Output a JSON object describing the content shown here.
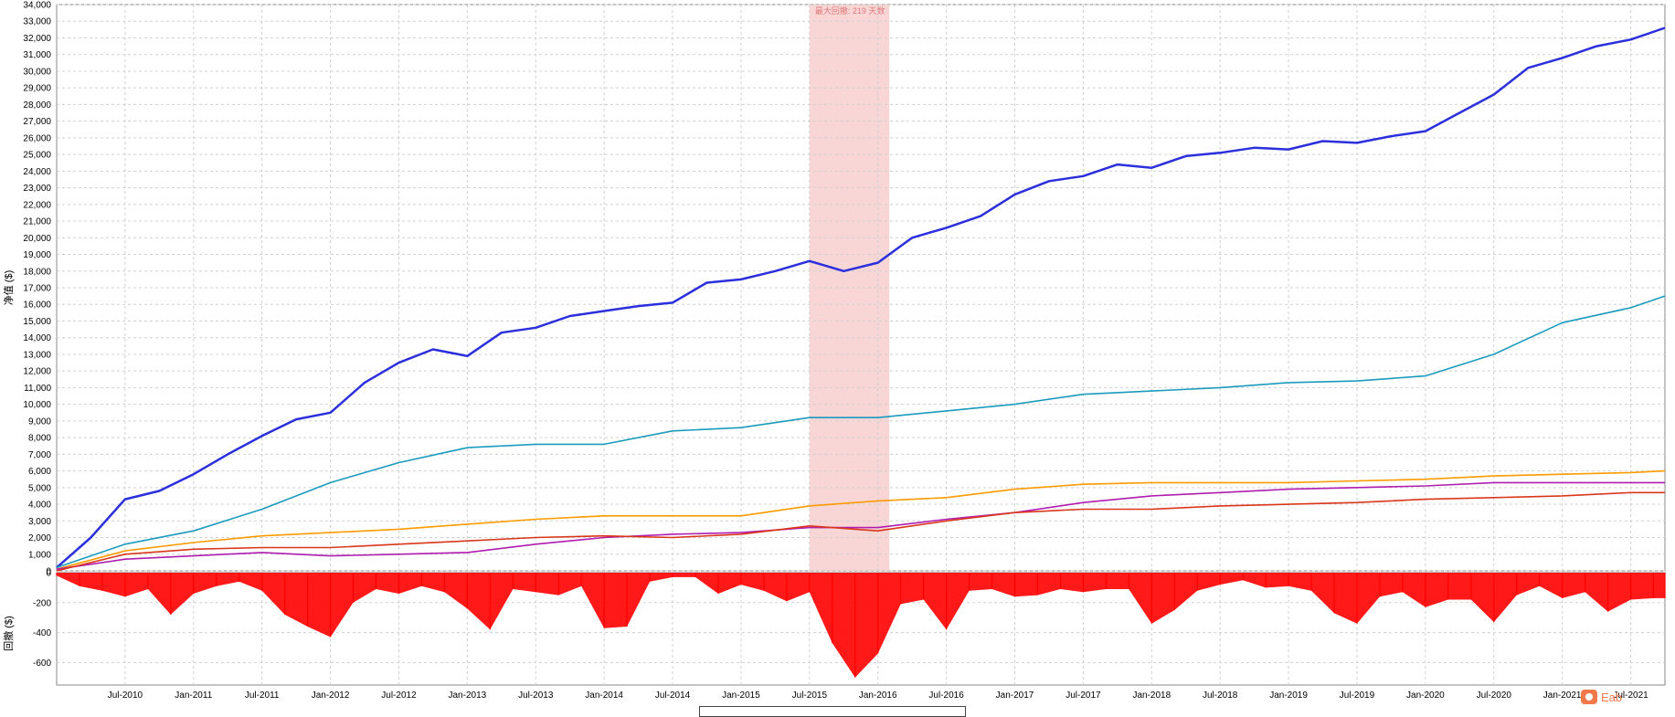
{
  "chart_data": [
    {
      "type": "line",
      "ylabel": "净值 ($)",
      "ylim": [
        0,
        34000
      ],
      "yticks": [
        0,
        1000,
        2000,
        3000,
        4000,
        5000,
        6000,
        7000,
        8000,
        9000,
        10000,
        11000,
        12000,
        13000,
        14000,
        15000,
        16000,
        17000,
        18000,
        19000,
        20000,
        21000,
        22000,
        23000,
        24000,
        25000,
        26000,
        27000,
        28000,
        29000,
        30000,
        31000,
        32000,
        33000,
        34000
      ],
      "ytick_labels": [
        "0",
        "1,000",
        "2,000",
        "3,000",
        "4,000",
        "5,000",
        "6,000",
        "7,000",
        "8,000",
        "9,000",
        "10,000",
        "11,000",
        "12,000",
        "13,000",
        "14,000",
        "15,000",
        "16,000",
        "17,000",
        "18,000",
        "19,000",
        "20,000",
        "21,000",
        "22,000",
        "23,000",
        "24,000",
        "25,000",
        "26,000",
        "27,000",
        "28,000",
        "29,000",
        "30,000",
        "31,000",
        "32,000",
        "33,000",
        "34,000"
      ],
      "x_range": [
        "2010-01",
        "2021-10"
      ],
      "grid": true,
      "annotation": {
        "label": "最大回撤: 219 天数",
        "start": "2015-07",
        "end": "2016-02",
        "color": "#f6c8c8"
      },
      "series": [
        {
          "color": "#2b2fdc",
          "x": [
            "2010-01",
            "2010-04",
            "2010-07",
            "2010-10",
            "2011-01",
            "2011-04",
            "2011-07",
            "2011-10",
            "2012-01",
            "2012-04",
            "2012-07",
            "2012-10",
            "2013-01",
            "2013-04",
            "2013-07",
            "2013-10",
            "2014-01",
            "2014-04",
            "2014-07",
            "2014-10",
            "2015-01",
            "2015-04",
            "2015-07",
            "2015-10",
            "2016-01",
            "2016-04",
            "2016-07",
            "2016-10",
            "2017-01",
            "2017-04",
            "2017-07",
            "2017-10",
            "2018-01",
            "2018-04",
            "2018-07",
            "2018-10",
            "2019-01",
            "2019-04",
            "2019-07",
            "2019-10",
            "2020-01",
            "2020-04",
            "2020-07",
            "2020-10",
            "2021-01",
            "2021-04",
            "2021-07",
            "2021-10"
          ],
          "y": [
            200,
            2000,
            4300,
            4800,
            5800,
            7000,
            8100,
            9100,
            9500,
            11300,
            12500,
            13300,
            12900,
            14300,
            14600,
            15300,
            15600,
            15900,
            16100,
            17300,
            17500,
            18000,
            18600,
            18000,
            18500,
            20000,
            20600,
            21300,
            22600,
            23400,
            23700,
            24400,
            24200,
            24900,
            25100,
            25400,
            25300,
            25800,
            25700,
            26100,
            26400,
            27500,
            28600,
            30200,
            30800,
            31500,
            31900,
            32600
          ]
        },
        {
          "color": "#1a9bbd",
          "x": [
            "2010-01",
            "2010-07",
            "2011-01",
            "2011-07",
            "2012-01",
            "2012-07",
            "2013-01",
            "2013-07",
            "2014-01",
            "2014-07",
            "2015-01",
            "2015-07",
            "2016-01",
            "2016-07",
            "2017-01",
            "2017-07",
            "2018-01",
            "2018-07",
            "2019-01",
            "2019-07",
            "2020-01",
            "2020-07",
            "2021-01",
            "2021-07",
            "2021-10"
          ],
          "y": [
            200,
            1600,
            2400,
            3700,
            5300,
            6500,
            7400,
            7600,
            7600,
            8400,
            8600,
            9200,
            9200,
            9600,
            10000,
            10600,
            10800,
            11000,
            11300,
            11400,
            11700,
            13000,
            14900,
            15800,
            16500
          ]
        },
        {
          "color": "#ff9a00",
          "x": [
            "2010-01",
            "2010-07",
            "2011-01",
            "2011-07",
            "2012-01",
            "2012-07",
            "2013-01",
            "2013-07",
            "2014-01",
            "2014-07",
            "2015-01",
            "2015-07",
            "2016-01",
            "2016-07",
            "2017-01",
            "2017-07",
            "2018-01",
            "2018-07",
            "2019-01",
            "2019-07",
            "2020-01",
            "2020-07",
            "2021-01",
            "2021-07",
            "2021-10"
          ],
          "y": [
            100,
            1200,
            1700,
            2100,
            2300,
            2500,
            2800,
            3100,
            3300,
            3300,
            3300,
            3900,
            4200,
            4400,
            4900,
            5200,
            5300,
            5300,
            5300,
            5400,
            5500,
            5700,
            5800,
            5900,
            6000
          ]
        },
        {
          "color": "#b01cb0",
          "x": [
            "2010-01",
            "2010-07",
            "2011-01",
            "2011-07",
            "2012-01",
            "2012-07",
            "2013-01",
            "2013-07",
            "2014-01",
            "2014-07",
            "2015-01",
            "2015-07",
            "2016-01",
            "2016-07",
            "2017-01",
            "2017-07",
            "2018-01",
            "2018-07",
            "2019-01",
            "2019-07",
            "2020-01",
            "2020-07",
            "2021-01",
            "2021-07",
            "2021-10"
          ],
          "y": [
            100,
            700,
            900,
            1100,
            900,
            1000,
            1100,
            1600,
            2000,
            2200,
            2300,
            2600,
            2600,
            3100,
            3500,
            4100,
            4500,
            4700,
            4900,
            5000,
            5100,
            5300,
            5300,
            5300,
            5300
          ]
        },
        {
          "color": "#d9361a",
          "x": [
            "2010-01",
            "2010-07",
            "2011-01",
            "2011-07",
            "2012-01",
            "2012-07",
            "2013-01",
            "2013-07",
            "2014-01",
            "2014-07",
            "2015-01",
            "2015-07",
            "2016-01",
            "2016-07",
            "2017-01",
            "2017-07",
            "2018-01",
            "2018-07",
            "2019-01",
            "2019-07",
            "2020-01",
            "2020-07",
            "2021-01",
            "2021-07",
            "2021-10"
          ],
          "y": [
            0,
            1000,
            1300,
            1400,
            1400,
            1600,
            1800,
            2000,
            2100,
            2000,
            2200,
            2700,
            2400,
            3000,
            3500,
            3700,
            3700,
            3900,
            4000,
            4100,
            4300,
            4400,
            4500,
            4700,
            4700
          ]
        }
      ]
    },
    {
      "type": "area",
      "ylabel": "回撤 ($)",
      "ylim": [
        -750,
        0
      ],
      "yticks": [
        0,
        -200,
        -400,
        -600
      ],
      "ytick_labels": [
        "0",
        "-200",
        "-400",
        "-600"
      ],
      "xtick_labels": [
        "Jul-2010",
        "Jan-2011",
        "Jul-2011",
        "Jan-2012",
        "Jul-2012",
        "Jan-2013",
        "Jul-2013",
        "Jan-2014",
        "Jul-2014",
        "Jan-2015",
        "Jul-2015",
        "Jan-2016",
        "Jul-2016",
        "Jan-2017",
        "Jul-2017",
        "Jan-2018",
        "Jul-2018",
        "Jan-2019",
        "Jul-2019",
        "Jan-2020",
        "Jul-2020",
        "Jan-2021",
        "Jul-2021"
      ],
      "xticks": [
        "2010-07",
        "2011-01",
        "2011-07",
        "2012-01",
        "2012-07",
        "2013-01",
        "2013-07",
        "2014-01",
        "2014-07",
        "2015-01",
        "2015-07",
        "2016-01",
        "2016-07",
        "2017-01",
        "2017-07",
        "2018-01",
        "2018-07",
        "2019-01",
        "2019-07",
        "2020-01",
        "2020-07",
        "2021-01",
        "2021-07"
      ],
      "grid": true,
      "color": "#ff0000",
      "series": [
        {
          "x": [
            "2010-01",
            "2010-03",
            "2010-05",
            "2010-07",
            "2010-09",
            "2010-11",
            "2011-01",
            "2011-03",
            "2011-05",
            "2011-07",
            "2011-09",
            "2011-11",
            "2012-01",
            "2012-03",
            "2012-05",
            "2012-07",
            "2012-09",
            "2012-11",
            "2013-01",
            "2013-03",
            "2013-05",
            "2013-07",
            "2013-09",
            "2013-11",
            "2014-01",
            "2014-03",
            "2014-05",
            "2014-07",
            "2014-09",
            "2014-11",
            "2015-01",
            "2015-03",
            "2015-05",
            "2015-07",
            "2015-09",
            "2015-11",
            "2016-01",
            "2016-03",
            "2016-05",
            "2016-07",
            "2016-09",
            "2016-11",
            "2017-01",
            "2017-03",
            "2017-05",
            "2017-07",
            "2017-09",
            "2017-11",
            "2018-01",
            "2018-03",
            "2018-05",
            "2018-07",
            "2018-09",
            "2018-11",
            "2019-01",
            "2019-03",
            "2019-05",
            "2019-07",
            "2019-09",
            "2019-11",
            "2020-01",
            "2020-03",
            "2020-05",
            "2020-07",
            "2020-09",
            "2020-11",
            "2021-01",
            "2021-03",
            "2021-05",
            "2021-07",
            "2021-09",
            "2021-10"
          ],
          "y": [
            -20,
            -90,
            -120,
            -160,
            -110,
            -280,
            -140,
            -90,
            -60,
            -120,
            -280,
            -360,
            -430,
            -200,
            -110,
            -140,
            -90,
            -130,
            -240,
            -380,
            -110,
            -130,
            -150,
            -90,
            -370,
            -360,
            -60,
            -30,
            -30,
            -140,
            -80,
            -120,
            -190,
            -130,
            -470,
            -700,
            -540,
            -210,
            -180,
            -380,
            -120,
            -110,
            -160,
            -150,
            -110,
            -130,
            -110,
            -110,
            -340,
            -250,
            -120,
            -80,
            -50,
            -100,
            -90,
            -120,
            -270,
            -340,
            -160,
            -130,
            -230,
            -180,
            -180,
            -330,
            -150,
            -90,
            -170,
            -130,
            -260,
            -180,
            -170,
            -170
          ]
        }
      ]
    }
  ],
  "watermark_text": "Eab"
}
